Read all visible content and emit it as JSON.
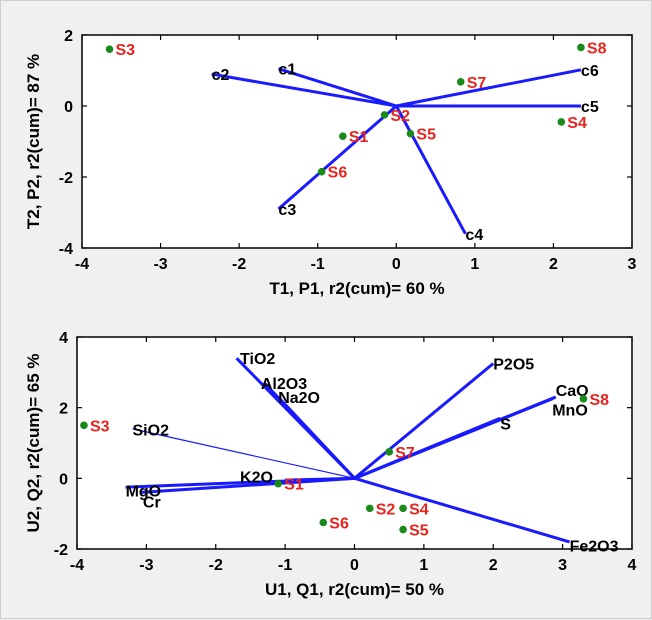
{
  "chart_data": [
    {
      "type": "scatter",
      "subtype": "biplot",
      "xlabel": "T1, P1, r2(cum)= 60 %",
      "ylabel": "T2, P2, r2(cum)= 87 %",
      "xlim": [
        -4,
        3
      ],
      "ylim": [
        -4,
        2
      ],
      "xticks": [
        "-4",
        "-3",
        "-2",
        "-1",
        "0",
        "1",
        "2",
        "3"
      ],
      "yticks": [
        "-4",
        "-2",
        "0",
        "2"
      ],
      "xtick_values": [
        -4,
        -3,
        -2,
        -1,
        0,
        1,
        2,
        3
      ],
      "ytick_values": [
        -4,
        -2,
        0,
        2
      ],
      "grid": false,
      "variables": [
        {
          "label": "c1",
          "x": -1.5,
          "y": 1.05
        },
        {
          "label": "c2",
          "x": -2.35,
          "y": 0.9
        },
        {
          "label": "c3",
          "x": -1.5,
          "y": -2.9
        },
        {
          "label": "c4",
          "x": 0.88,
          "y": -3.6
        },
        {
          "label": "c5",
          "x": 2.35,
          "y": 0.0
        },
        {
          "label": "c6",
          "x": 2.35,
          "y": 1.02
        }
      ],
      "observations": [
        {
          "label": "S1",
          "x": -0.68,
          "y": -0.85
        },
        {
          "label": "S2",
          "x": -0.15,
          "y": -0.25
        },
        {
          "label": "S3",
          "x": -3.65,
          "y": 1.6
        },
        {
          "label": "S4",
          "x": 2.1,
          "y": -0.45
        },
        {
          "label": "S5",
          "x": 0.18,
          "y": -0.78
        },
        {
          "label": "S6",
          "x": -0.95,
          "y": -1.85
        },
        {
          "label": "S7",
          "x": 0.82,
          "y": 0.68
        },
        {
          "label": "S8",
          "x": 2.35,
          "y": 1.65
        }
      ]
    },
    {
      "type": "scatter",
      "subtype": "biplot",
      "xlabel": "U1, Q1, r2(cum)= 50 %",
      "ylabel": "U2, Q2, r2(cum)= 65 %",
      "xlim": [
        -4,
        4
      ],
      "ylim": [
        -2,
        4
      ],
      "xticks": [
        "-4",
        "-3",
        "-2",
        "-1",
        "0",
        "1",
        "2",
        "3",
        "4"
      ],
      "yticks": [
        "-2",
        "0",
        "2",
        "4"
      ],
      "xtick_values": [
        -4,
        -3,
        -2,
        -1,
        0,
        1,
        2,
        3,
        4
      ],
      "ytick_values": [
        -2,
        0,
        2,
        4
      ],
      "grid": false,
      "variables": [
        {
          "label": "TiO2",
          "x": -1.7,
          "y": 3.4,
          "lx": -1.65,
          "ly": 3.4
        },
        {
          "label": "Al2O3",
          "x": -1.3,
          "y": 2.7,
          "lx": -1.35,
          "ly": 2.7
        },
        {
          "label": "Na2O",
          "x": -1.1,
          "y": 2.3,
          "lx": -1.1,
          "ly": 2.3
        },
        {
          "label": "SiO2",
          "x": -3.2,
          "y": 1.4,
          "lx": -3.2,
          "ly": 1.38,
          "thin": true
        },
        {
          "label": "P2O5",
          "x": 2.0,
          "y": 3.25,
          "lx": 2.0,
          "ly": 3.25
        },
        {
          "label": "CaO",
          "x": 2.9,
          "y": 2.3,
          "lx": 2.9,
          "ly": 2.5
        },
        {
          "label": "MnO",
          "x": 2.85,
          "y": 2.25,
          "lx": 2.85,
          "ly": 1.95
        },
        {
          "label": "S",
          "x": 2.1,
          "y": 1.7,
          "lx": 2.1,
          "ly": 1.55
        },
        {
          "label": "K2O",
          "x": -1.0,
          "y": -0.05,
          "lx": -1.65,
          "ly": 0.05
        },
        {
          "label": "MgO",
          "x": -3.3,
          "y": -0.25,
          "lx": -3.3,
          "ly": -0.35
        },
        {
          "label": "Cr",
          "x": -3.1,
          "y": -0.4,
          "lx": -3.05,
          "ly": -0.65
        },
        {
          "label": "Fe2O3",
          "x": 3.1,
          "y": -1.8,
          "lx": 3.1,
          "ly": -1.9
        }
      ],
      "observations": [
        {
          "label": "S1",
          "x": -1.1,
          "y": -0.15
        },
        {
          "label": "S2",
          "x": 0.22,
          "y": -0.85
        },
        {
          "label": "S3",
          "x": -3.9,
          "y": 1.5
        },
        {
          "label": "S4",
          "x": 0.7,
          "y": -0.85
        },
        {
          "label": "S5",
          "x": 0.7,
          "y": -1.45
        },
        {
          "label": "S6",
          "x": -0.45,
          "y": -1.25
        },
        {
          "label": "S7",
          "x": 0.5,
          "y": 0.75
        },
        {
          "label": "S8",
          "x": 3.3,
          "y": 2.25
        }
      ]
    }
  ],
  "colors": {
    "background": "#f0f0f0",
    "plot_bg": "#ffffff",
    "loading_line": "#1a1aff",
    "observation_point": "#1a8a1a",
    "observation_label": "#e8231c",
    "variable_label": "#000000"
  }
}
